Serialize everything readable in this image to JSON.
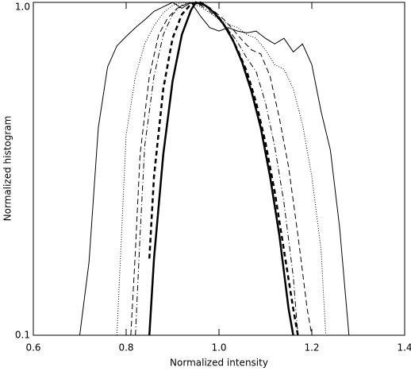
{
  "chart_data": {
    "type": "line",
    "xlabel": "Normalized intensity",
    "ylabel": "Normalized histogram",
    "xlim": [
      0.6,
      1.4
    ],
    "ylim": [
      0.1,
      1.0
    ],
    "ylog": true,
    "xticks": [
      0.6,
      0.8,
      {
        "value": 1,
        "label": "1.0"
      },
      1.2,
      1.4
    ],
    "yticks": [
      0.1,
      {
        "value": 1,
        "label": "1.0"
      }
    ],
    "series": [
      {
        "color": "#000000",
        "width": 1,
        "dash": "none",
        "x": [
          0.7,
          0.72,
          0.74,
          0.76,
          0.78,
          0.8,
          0.82,
          0.84,
          0.86,
          0.88,
          0.9,
          0.92,
          0.94,
          0.96,
          0.98,
          1.0,
          1.02,
          1.04,
          1.06,
          1.08,
          1.1,
          1.12,
          1.14,
          1.16,
          1.18,
          1.2,
          1.22,
          1.24,
          1.26,
          1.28
        ],
        "values": [
          0.1,
          0.166,
          0.42,
          0.64,
          0.74,
          0.79,
          0.84,
          0.886,
          0.94,
          0.97,
          1.0,
          0.96,
          1.0,
          0.91,
          0.84,
          0.82,
          0.84,
          0.82,
          0.81,
          0.82,
          0.78,
          0.75,
          0.78,
          0.71,
          0.75,
          0.65,
          0.47,
          0.36,
          0.21,
          0.1
        ]
      },
      {
        "color": "#000000",
        "width": 1,
        "dash": "1 2",
        "x": [
          0.78,
          0.79,
          0.8,
          0.82,
          0.84,
          0.86,
          0.88,
          0.9,
          0.92,
          0.94,
          0.96,
          0.98,
          1.0,
          1.02,
          1.04,
          1.06,
          1.08,
          1.1,
          1.12,
          1.14,
          1.16,
          1.18,
          1.2,
          1.22,
          1.23
        ],
        "values": [
          0.1,
          0.2,
          0.4,
          0.6,
          0.75,
          0.85,
          0.93,
          0.98,
          1.0,
          0.99,
          0.97,
          0.93,
          0.89,
          0.86,
          0.84,
          0.8,
          0.78,
          0.72,
          0.65,
          0.63,
          0.55,
          0.43,
          0.3,
          0.18,
          0.1
        ]
      },
      {
        "color": "#000000",
        "width": 1,
        "dash": "7 4",
        "x": [
          0.81,
          0.82,
          0.83,
          0.85,
          0.87,
          0.89,
          0.91,
          0.93,
          0.95,
          0.97,
          0.99,
          1.01,
          1.03,
          1.05,
          1.07,
          1.09,
          1.11,
          1.13,
          1.15,
          1.17,
          1.19,
          1.2
        ],
        "values": [
          0.1,
          0.18,
          0.35,
          0.6,
          0.8,
          0.9,
          0.96,
          0.99,
          1.0,
          0.98,
          0.94,
          0.89,
          0.83,
          0.77,
          0.72,
          0.7,
          0.6,
          0.45,
          0.32,
          0.2,
          0.12,
          0.1
        ]
      },
      {
        "color": "#000000",
        "width": 1,
        "dash": "7 3 1 3",
        "x": [
          0.82,
          0.83,
          0.84,
          0.86,
          0.88,
          0.9,
          0.92,
          0.94,
          0.96,
          0.98,
          1.0,
          1.02,
          1.04,
          1.06,
          1.08,
          1.1,
          1.12,
          1.14,
          1.16,
          1.17
        ],
        "values": [
          0.1,
          0.2,
          0.37,
          0.6,
          0.8,
          0.92,
          0.98,
          1.0,
          0.98,
          0.94,
          0.89,
          0.83,
          0.76,
          0.68,
          0.62,
          0.5,
          0.37,
          0.25,
          0.15,
          0.1
        ]
      },
      {
        "color": "#000000",
        "width": 2.5,
        "dash": "6 4",
        "x": [
          0.85,
          0.86,
          0.88,
          0.9,
          0.92,
          0.94,
          0.96,
          0.98,
          1.0,
          1.02,
          1.04,
          1.06,
          1.08,
          1.1,
          1.12,
          1.14,
          1.16,
          1.17
        ],
        "values": [
          0.17,
          0.3,
          0.55,
          0.78,
          0.92,
          0.99,
          1.0,
          0.96,
          0.9,
          0.82,
          0.72,
          0.62,
          0.5,
          0.38,
          0.27,
          0.18,
          0.12,
          0.1
        ]
      },
      {
        "color": "#000000",
        "width": 2.5,
        "dash": "none",
        "x": [
          0.85,
          0.86,
          0.88,
          0.9,
          0.92,
          0.94,
          0.95,
          0.97,
          0.99,
          1.01,
          1.03,
          1.05,
          1.07,
          1.09,
          1.11,
          1.13,
          1.15,
          1.16
        ],
        "values": [
          0.1,
          0.17,
          0.35,
          0.58,
          0.8,
          0.95,
          1.0,
          0.98,
          0.93,
          0.86,
          0.77,
          0.66,
          0.54,
          0.42,
          0.3,
          0.2,
          0.12,
          0.1
        ]
      }
    ]
  }
}
